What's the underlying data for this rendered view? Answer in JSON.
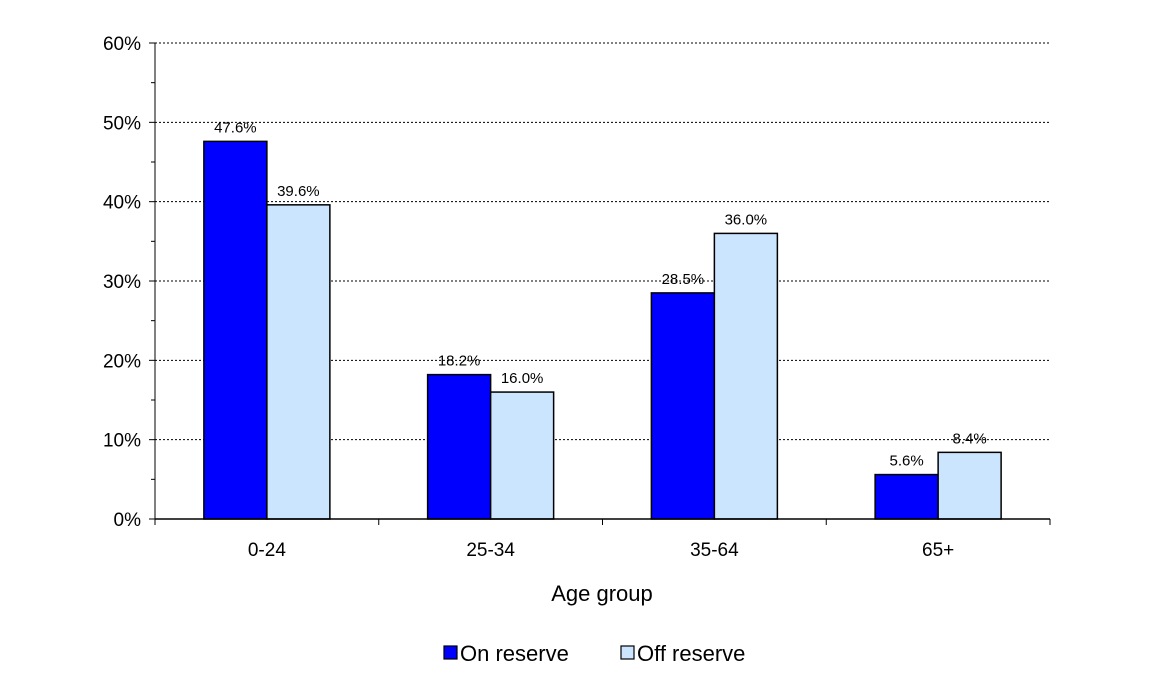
{
  "chart_data": {
    "type": "bar",
    "categories": [
      "0-24",
      "25-34",
      "35-64",
      "65+"
    ],
    "series": [
      {
        "name": "On reserve",
        "values": [
          47.6,
          18.2,
          28.5,
          5.6
        ],
        "labels": [
          "47.6%",
          "18.2%",
          "28.5%",
          "5.6%"
        ],
        "color": "#0000ff"
      },
      {
        "name": "Off reserve",
        "values": [
          39.6,
          16.0,
          36.0,
          8.4
        ],
        "labels": [
          "39.6%",
          "16.0%",
          "36.0%",
          "8.4%"
        ],
        "color": "#cce5ff"
      }
    ],
    "xlabel": "Age group",
    "ylabel": "",
    "ylim": [
      0,
      60
    ],
    "yticks": [
      0,
      10,
      20,
      30,
      40,
      50,
      60
    ],
    "ytick_labels": [
      "0%",
      "10%",
      "20%",
      "30%",
      "40%",
      "50%",
      "60%"
    ],
    "grid": true,
    "legend_position": "bottom"
  }
}
